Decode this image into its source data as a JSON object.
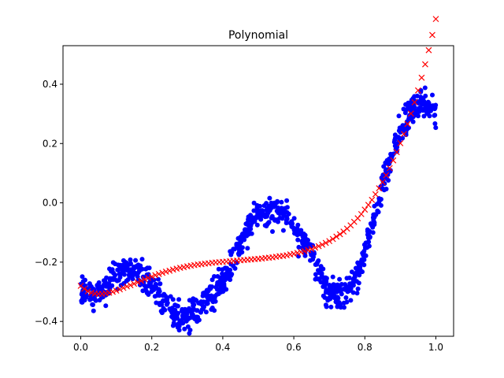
{
  "chart_data": {
    "type": "scatter",
    "title": "Polynomial",
    "xlabel": "",
    "ylabel": "",
    "xlim": [
      -0.05,
      1.05
    ],
    "ylim": [
      -0.45,
      0.53
    ],
    "grid": false,
    "x_ticks": [
      0.0,
      0.2,
      0.4,
      0.6,
      0.8,
      1.0
    ],
    "x_tick_labels": [
      "0.0",
      "0.2",
      "0.4",
      "0.6",
      "0.8",
      "1.0"
    ],
    "y_ticks": [
      -0.4,
      -0.2,
      0.0,
      0.2,
      0.4
    ],
    "y_tick_labels": [
      "−0.4",
      "−0.2",
      "0.0",
      "0.2",
      "0.4"
    ],
    "colors": {
      "data": "#0000ff",
      "fit": "#ff0000"
    },
    "series": [
      {
        "marker": "dot",
        "color": "#0000ff",
        "trend": {
          "x": [
            0.0,
            0.03,
            0.06,
            0.09,
            0.12,
            0.15,
            0.18,
            0.21,
            0.24,
            0.27,
            0.3,
            0.33,
            0.36,
            0.39,
            0.42,
            0.45,
            0.48,
            0.51,
            0.54,
            0.57,
            0.6,
            0.63,
            0.66,
            0.69,
            0.72,
            0.75,
            0.78,
            0.81,
            0.84,
            0.87,
            0.9,
            0.93,
            0.96,
            1.0
          ],
          "y": [
            -0.29,
            -0.31,
            -0.3,
            -0.25,
            -0.22,
            -0.22,
            -0.25,
            -0.29,
            -0.34,
            -0.37,
            -0.38,
            -0.36,
            -0.32,
            -0.28,
            -0.22,
            -0.14,
            -0.07,
            -0.03,
            -0.02,
            -0.04,
            -0.07,
            -0.14,
            -0.21,
            -0.29,
            -0.32,
            -0.3,
            -0.24,
            -0.12,
            0.02,
            0.14,
            0.24,
            0.31,
            0.34,
            0.31
          ]
        },
        "count": 1000,
        "noise": 0.025
      },
      {
        "marker": "x",
        "color": "#ff0000",
        "x": [
          0.0,
          0.01,
          0.02,
          0.03,
          0.04,
          0.05,
          0.06,
          0.07,
          0.08,
          0.09,
          0.1,
          0.11,
          0.12,
          0.13,
          0.14,
          0.15,
          0.16,
          0.17,
          0.18,
          0.19,
          0.2,
          0.21,
          0.22,
          0.23,
          0.24,
          0.25,
          0.26,
          0.27,
          0.28,
          0.29,
          0.3,
          0.31,
          0.32,
          0.33,
          0.34,
          0.35,
          0.36,
          0.37,
          0.38,
          0.39,
          0.4,
          0.41,
          0.42,
          0.43,
          0.44,
          0.45,
          0.46,
          0.47,
          0.48,
          0.49,
          0.5,
          0.51,
          0.52,
          0.53,
          0.54,
          0.55,
          0.56,
          0.57,
          0.58,
          0.59,
          0.6,
          0.61,
          0.62,
          0.63,
          0.64,
          0.65,
          0.66,
          0.67,
          0.68,
          0.69,
          0.7,
          0.71,
          0.72,
          0.73,
          0.74,
          0.75,
          0.76,
          0.77,
          0.78,
          0.79,
          0.8,
          0.81,
          0.82,
          0.83,
          0.84,
          0.85,
          0.86,
          0.87,
          0.88,
          0.89,
          0.9,
          0.91,
          0.92,
          0.93,
          0.94,
          0.95,
          0.96,
          0.97,
          0.98,
          0.99,
          1.0
        ],
        "y": [
          -0.28,
          -0.29,
          -0.298,
          -0.303,
          -0.306,
          -0.307,
          -0.307,
          -0.305,
          -0.303,
          -0.3,
          -0.296,
          -0.292,
          -0.287,
          -0.282,
          -0.278,
          -0.273,
          -0.268,
          -0.263,
          -0.258,
          -0.253,
          -0.249,
          -0.244,
          -0.24,
          -0.236,
          -0.232,
          -0.229,
          -0.225,
          -0.222,
          -0.219,
          -0.217,
          -0.214,
          -0.212,
          -0.21,
          -0.208,
          -0.207,
          -0.205,
          -0.204,
          -0.202,
          -0.201,
          -0.2,
          -0.199,
          -0.198,
          -0.197,
          -0.196,
          -0.195,
          -0.194,
          -0.193,
          -0.192,
          -0.191,
          -0.19,
          -0.189,
          -0.188,
          -0.186,
          -0.185,
          -0.184,
          -0.182,
          -0.18,
          -0.179,
          -0.177,
          -0.174,
          -0.172,
          -0.169,
          -0.166,
          -0.163,
          -0.159,
          -0.156,
          -0.151,
          -0.146,
          -0.141,
          -0.135,
          -0.129,
          -0.122,
          -0.114,
          -0.106,
          -0.097,
          -0.087,
          -0.076,
          -0.064,
          -0.052,
          -0.038,
          -0.023,
          -0.007,
          0.01,
          0.029,
          0.049,
          0.07,
          0.093,
          0.117,
          0.143,
          0.171,
          0.201,
          0.232,
          0.266,
          0.301,
          0.339,
          0.379,
          0.422,
          0.467,
          0.515,
          0.566,
          0.62
        ]
      }
    ]
  }
}
